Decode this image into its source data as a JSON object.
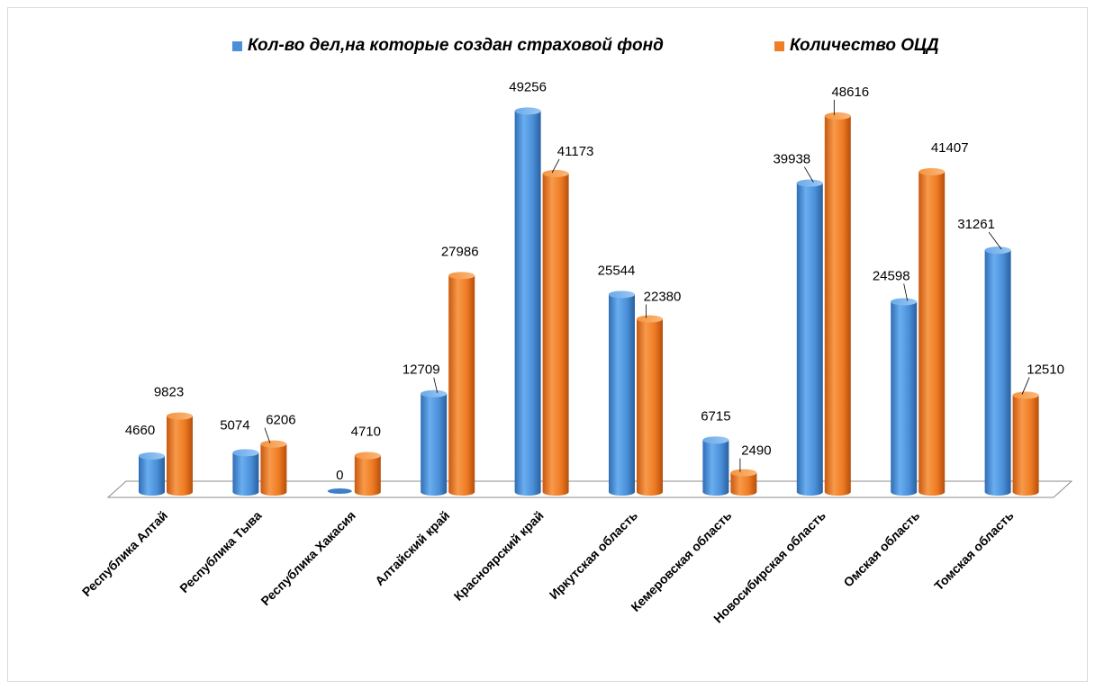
{
  "chart_data": {
    "type": "bar",
    "title": "",
    "xlabel": "",
    "ylabel": "",
    "ylim": [
      0,
      50000
    ],
    "grid": false,
    "legend_position": "top",
    "categories": [
      "Республика Алтай",
      "Республика Тыва",
      "Республика Хакасия",
      "Алтайский край",
      "Красноярский край",
      "Иркутская область",
      "Кемеровская область",
      "Новосибирская область",
      "Омская область",
      "Томская область"
    ],
    "series": [
      {
        "name": "Кол-во дел,на которые создан страховой фонд",
        "color": "#4a90d9",
        "values": [
          4660,
          5074,
          0,
          12709,
          49256,
          25544,
          6715,
          39938,
          24598,
          31261
        ],
        "labels": [
          "4660",
          "5074",
          "0",
          "12709",
          "49256",
          "25544",
          "6715",
          "39938",
          "24598",
          "31261"
        ]
      },
      {
        "name": "Количество ОЦД",
        "color": "#f07e26",
        "values": [
          9823,
          6206,
          4710,
          27986,
          41173,
          22380,
          2490,
          48616,
          41407,
          12510
        ],
        "labels": [
          "9823",
          "6206",
          "4710",
          "27986",
          "41173",
          "22380",
          "2490",
          "48616",
          "41407",
          "12510"
        ]
      }
    ]
  }
}
